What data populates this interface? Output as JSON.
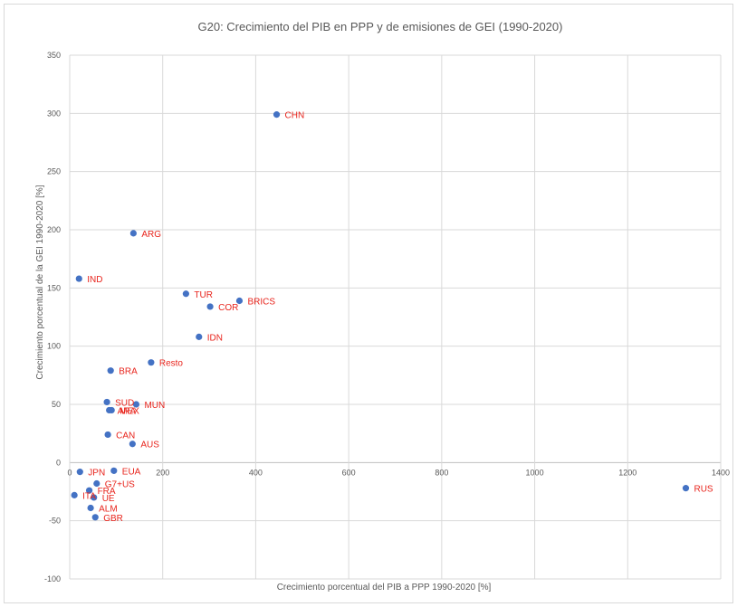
{
  "chart_data": {
    "type": "scatter",
    "title": "G20: Crecimiento del PIB en PPP y de emisiones de GEI (1990-2020)",
    "xlabel": "Crecimiento porcentual del PIB a PPP 1990-2020 [%]",
    "ylabel": "Crecimiento porcentual de la GEI 1990-2020 [%]",
    "xlim": [
      0,
      1400
    ],
    "ylim": [
      -100,
      350
    ],
    "x_ticks": [
      "0",
      "200",
      "400",
      "600",
      "800",
      "1000",
      "1200",
      "1400"
    ],
    "y_ticks": [
      "-100",
      "-50",
      "0",
      "50",
      "100",
      "150",
      "200",
      "250",
      "300",
      "350"
    ],
    "grid": true,
    "marker_color": "#4472c4",
    "label_color": "#e8241c",
    "points": [
      {
        "label": "CHN",
        "x": 445,
        "y": 299
      },
      {
        "label": "ARG",
        "x": 137,
        "y": 197
      },
      {
        "label": "IND",
        "x": 20,
        "y": 158
      },
      {
        "label": "TUR",
        "x": 250,
        "y": 145
      },
      {
        "label": "BRICS",
        "x": 365,
        "y": 139
      },
      {
        "label": "COR",
        "x": 302,
        "y": 134
      },
      {
        "label": "IDN",
        "x": 278,
        "y": 108
      },
      {
        "label": "Resto",
        "x": 175,
        "y": 86
      },
      {
        "label": "BRA",
        "x": 88,
        "y": 79
      },
      {
        "label": "SUD",
        "x": 80,
        "y": 52
      },
      {
        "label": "MUN",
        "x": 143,
        "y": 50
      },
      {
        "label": "ARA",
        "x": 85,
        "y": 45
      },
      {
        "label": "MEX",
        "x": 90,
        "y": 45
      },
      {
        "label": "CAN",
        "x": 82,
        "y": 24
      },
      {
        "label": "AUS",
        "x": 135,
        "y": 16
      },
      {
        "label": "EUA",
        "x": 95,
        "y": -7
      },
      {
        "label": "JPN",
        "x": 22,
        "y": -8
      },
      {
        "label": "G7+US",
        "x": 58,
        "y": -18
      },
      {
        "label": "FRA",
        "x": 42,
        "y": -24
      },
      {
        "label": "ITA",
        "x": 10,
        "y": -28
      },
      {
        "label": "UE",
        "x": 52,
        "y": -30
      },
      {
        "label": "ALM",
        "x": 45,
        "y": -39
      },
      {
        "label": "GBR",
        "x": 55,
        "y": -47
      },
      {
        "label": "RUS",
        "x": 1325,
        "y": -22
      }
    ]
  }
}
